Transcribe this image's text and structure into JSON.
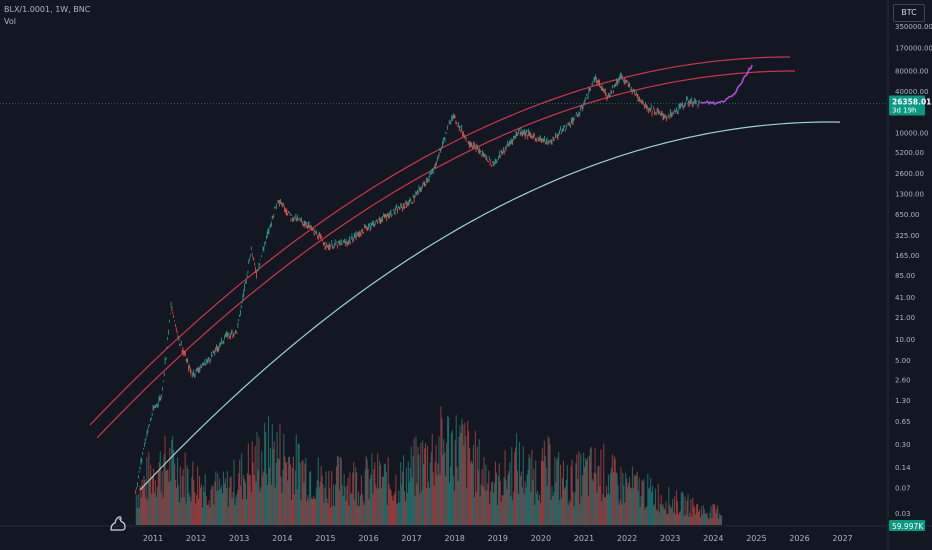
{
  "header": {
    "symbol_line": "BLX/1.0001, 1W, BNC",
    "indicator": "Vol"
  },
  "toolbar": {
    "currency_button": "BTC"
  },
  "price_badge": {
    "price": "26358.01",
    "countdown": "3d 19h",
    "color": "#089981"
  },
  "volume_badge": {
    "value": "59.997K",
    "color": "#089981"
  },
  "colors": {
    "background": "#131722",
    "up": "#26a69a",
    "down": "#ef5350",
    "projection": "#b04ed8",
    "upper_bands": "#d2334a",
    "support_curve": "#9bd6c6"
  },
  "chart_data": {
    "type": "line",
    "scale": "log",
    "x_ticks": [
      "2011",
      "2012",
      "2013",
      "2014",
      "2015",
      "2016",
      "2017",
      "2018",
      "2019",
      "2020",
      "2021",
      "2022",
      "2023",
      "2024",
      "2025",
      "2026",
      "2027"
    ],
    "y_ticks": [
      "350000.00",
      "170000.00",
      "80000.00",
      "40000.00",
      "10000.00",
      "5200.00",
      "2600.00",
      "1300.00",
      "650.00",
      "325.00",
      "165.00",
      "85.00",
      "41.00",
      "21.00",
      "10.00",
      "5.00",
      "2.60",
      "1.30",
      "0.65",
      "0.30",
      "0.14",
      "0.07",
      "0.03"
    ],
    "ylim": [
      0.02,
      600000
    ],
    "series": [
      {
        "type": "candles",
        "x": [
          2010.6,
          2010.8,
          2011.0,
          2011.2,
          2011.42,
          2011.6,
          2011.9,
          2012.3,
          2012.7,
          2012.95,
          2013.28,
          2013.4,
          2013.9,
          2014.2,
          2014.6,
          2015.05,
          2015.5,
          2016.0,
          2016.5,
          2017.0,
          2017.5,
          2017.95,
          2018.3,
          2018.9,
          2019.5,
          2020.2,
          2020.9,
          2021.25,
          2021.55,
          2021.85,
          2022.5,
          2022.95,
          2023.4,
          2023.7
        ],
        "y": [
          0.06,
          0.3,
          0.9,
          1.5,
          30,
          10,
          3,
          5,
          11,
          13,
          200,
          90,
          1100,
          600,
          450,
          220,
          250,
          430,
          650,
          1000,
          2700,
          18000,
          7500,
          3500,
          10500,
          7000,
          19000,
          60000,
          33000,
          65000,
          22000,
          16500,
          28000,
          26358
        ]
      },
      {
        "name": "",
        "type": "projection",
        "x": [
          2023.7,
          2023.9,
          2024.1,
          2024.3,
          2024.5,
          2024.7,
          2024.9
        ],
        "y": [
          26358,
          27000,
          26500,
          30000,
          38000,
          60000,
          95000
        ]
      },
      {
        "type": "curve",
        "role": "upper-outer"
      },
      {
        "type": "curve",
        "role": "upper-inner"
      },
      {
        "type": "curve",
        "role": "support"
      }
    ],
    "volume": {
      "x": [
        2010.6,
        2011.0,
        2011.4,
        2011.8,
        2012.2,
        2012.6,
        2013.0,
        2013.4,
        2013.8,
        2014.2,
        2014.6,
        2015.0,
        2015.4,
        2015.8,
        2016.2,
        2016.6,
        2017.0,
        2017.4,
        2017.8,
        2018.2,
        2018.6,
        2019.0,
        2019.4,
        2019.8,
        2020.2,
        2020.6,
        2021.0,
        2021.4,
        2021.8,
        2022.2,
        2022.6,
        2023.0,
        2023.4,
        2023.8
      ],
      "values": [
        45,
        80,
        90,
        70,
        60,
        50,
        70,
        95,
        110,
        90,
        80,
        60,
        70,
        65,
        70,
        60,
        80,
        100,
        120,
        110,
        80,
        60,
        90,
        70,
        85,
        60,
        75,
        80,
        60,
        55,
        45,
        35,
        30,
        20
      ]
    }
  }
}
